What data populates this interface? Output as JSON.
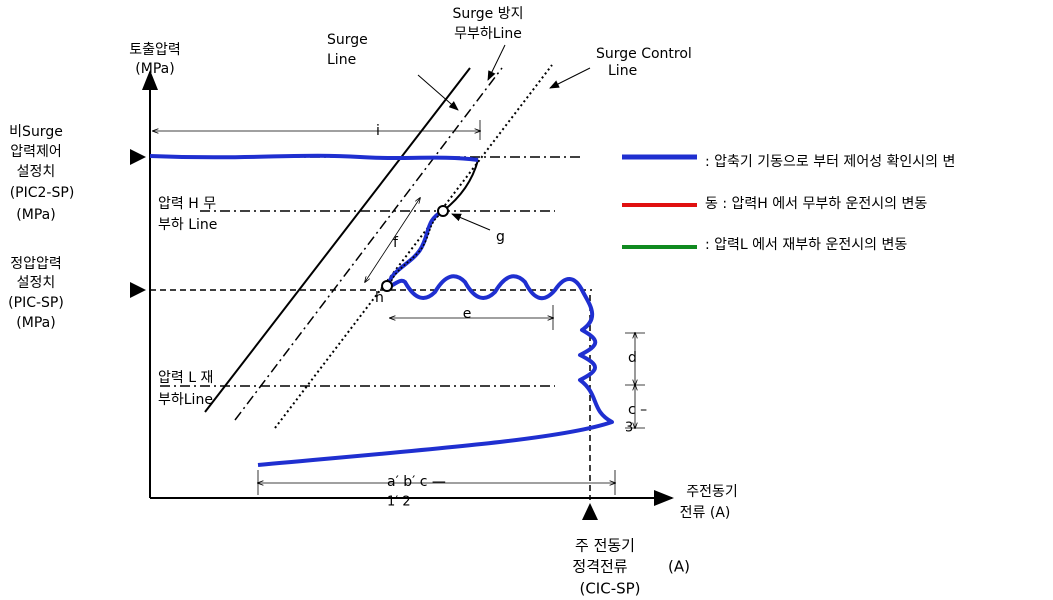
{
  "axes": {
    "y_label": [
      "토출압력",
      "(MPa)"
    ],
    "x_label": [
      "주전동기",
      "전류 (A)"
    ]
  },
  "lines": {
    "surge_line": [
      "Surge",
      "Line"
    ],
    "surge_prevent_line": [
      "Surge 방지",
      "무부하Line"
    ],
    "surge_control_line": [
      "Surge Control",
      "Line"
    ],
    "pressure_h_line": [
      "압력 H 무",
      "부하 Line"
    ],
    "pressure_l_line": [
      "압력 L 재",
      "부하Line"
    ]
  },
  "setpoints": {
    "pic2": [
      "비Surge",
      "압력제어",
      "설정치",
      "(PIC2-SP)",
      "(MPa)"
    ],
    "pic": [
      "정압압력",
      "설정치",
      "(PIC-SP)",
      "(MPa)"
    ],
    "cic": [
      "주 전동기",
      "정격전류",
      "(CIC-SP)"
    ],
    "cic_unit": "(A)"
  },
  "markers": {
    "i": "i",
    "f": "f",
    "g": "g",
    "h": "h",
    "e": "e",
    "d": "d",
    "c": [
      "c –",
      "3"
    ],
    "ab": [
      "a′ b′ c —",
      "1′ 2"
    ]
  },
  "legend": [
    ": 압축기 기동으로 부터 제어성 확인시의 변",
    "동 : 압력H 에서 무부하 운전시의 변동",
    ": 압력L 에서 재부하 운전시의 변동"
  ]
}
